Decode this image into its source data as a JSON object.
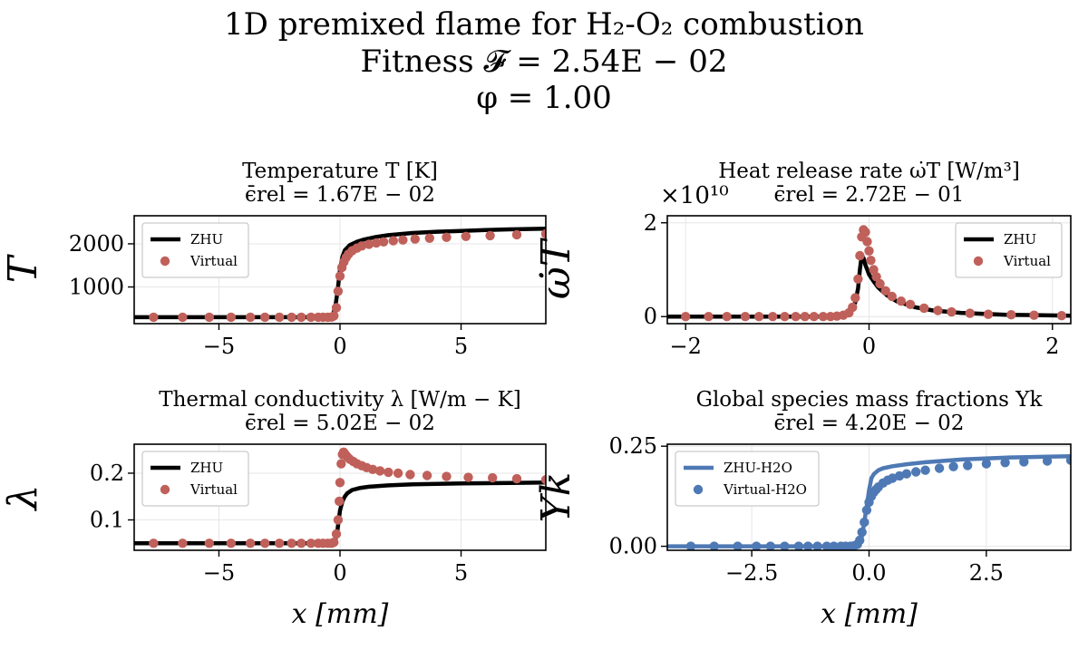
{
  "figure": {
    "title_lines": [
      "1D premixed flame for H₂-O₂ combustion",
      "Fitness 𝓕 = 2.54E − 02",
      "φ = 1.00"
    ],
    "colors": {
      "reference": "#000000",
      "virtual": "#c0605a",
      "species": "#4e79b4",
      "grid": "#e6e6e6"
    }
  },
  "chart_data": [
    {
      "type": "line",
      "panel": "temperature",
      "title": "Temperature T [K]",
      "subtitle": "ϵ̄rel = 1.67E − 02",
      "xlabel": "",
      "ylabel": "T",
      "xlim": [
        -8.5,
        8.5
      ],
      "ylim": [
        150,
        2650
      ],
      "xticks": [
        -5,
        0,
        5
      ],
      "xtick_labels": [
        "−5",
        "0",
        "5"
      ],
      "yticks": [
        1000,
        2000
      ],
      "ytick_labels": [
        "1000",
        "2000"
      ],
      "grid": true,
      "legend_position": "top-left",
      "series": [
        {
          "name": "ZHU",
          "style": "line",
          "color": "#000000",
          "x": [
            -8.5,
            -1.0,
            -0.5,
            -0.3,
            -0.2,
            -0.1,
            0.0,
            0.1,
            0.2,
            0.4,
            0.7,
            1.0,
            1.5,
            2.0,
            3.0,
            4.0,
            5.0,
            6.0,
            7.0,
            8.5
          ],
          "y": [
            300,
            300,
            305,
            360,
            520,
            900,
            1400,
            1700,
            1850,
            1970,
            2050,
            2100,
            2160,
            2200,
            2250,
            2280,
            2300,
            2320,
            2335,
            2350
          ]
        },
        {
          "name": "Virtual",
          "style": "scatter",
          "color": "#c0605a",
          "x": [
            -7.7,
            -6.5,
            -5.4,
            -4.5,
            -3.7,
            -3.1,
            -2.5,
            -2.0,
            -1.6,
            -1.2,
            -0.9,
            -0.7,
            -0.5,
            -0.35,
            -0.25,
            -0.15,
            -0.08,
            0.0,
            0.08,
            0.16,
            0.25,
            0.35,
            0.5,
            0.7,
            0.9,
            1.2,
            1.5,
            1.8,
            2.2,
            2.6,
            3.1,
            3.7,
            4.4,
            5.2,
            6.2,
            7.3,
            8.5
          ],
          "y": [
            300,
            300,
            300,
            300,
            300,
            300,
            300,
            300,
            300,
            300,
            300,
            300,
            300,
            302,
            330,
            520,
            900,
            1250,
            1450,
            1580,
            1680,
            1760,
            1840,
            1900,
            1950,
            1990,
            2020,
            2045,
            2070,
            2090,
            2110,
            2130,
            2150,
            2170,
            2190,
            2210,
            2230
          ]
        }
      ]
    },
    {
      "type": "line",
      "panel": "heat-release",
      "title": "Heat release rate ω̇T [W/m³]",
      "subtitle": "ϵ̄rel = 2.72E − 01",
      "xlabel": "",
      "ylabel": "ω̇T",
      "y_scale_label": "×10¹⁰",
      "xlim": [
        -2.2,
        2.2
      ],
      "ylim": [
        -0.15,
        2.15
      ],
      "xticks": [
        -2,
        0,
        2
      ],
      "xtick_labels": [
        "−2",
        "0",
        "2"
      ],
      "yticks": [
        0,
        2
      ],
      "ytick_labels": [
        "0",
        "2"
      ],
      "grid": true,
      "legend_position": "top-right",
      "series": [
        {
          "name": "ZHU",
          "style": "line",
          "color": "#000000",
          "x": [
            -2.2,
            -0.5,
            -0.3,
            -0.2,
            -0.15,
            -0.12,
            -0.1,
            -0.08,
            -0.06,
            -0.04,
            -0.02,
            0.0,
            0.05,
            0.1,
            0.2,
            0.3,
            0.5,
            0.7,
            1.0,
            1.5,
            2.2
          ],
          "y": [
            0,
            0,
            0.02,
            0.1,
            0.3,
            0.6,
            1.0,
            1.3,
            1.25,
            1.1,
            1.0,
            0.9,
            0.75,
            0.62,
            0.45,
            0.33,
            0.2,
            0.13,
            0.08,
            0.04,
            0.02
          ]
        },
        {
          "name": "Virtual",
          "style": "scatter",
          "color": "#c0605a",
          "x": [
            -2.0,
            -1.75,
            -1.55,
            -1.35,
            -1.2,
            -1.05,
            -0.92,
            -0.8,
            -0.7,
            -0.6,
            -0.5,
            -0.42,
            -0.35,
            -0.28,
            -0.22,
            -0.18,
            -0.15,
            -0.12,
            -0.1,
            -0.08,
            -0.06,
            -0.04,
            -0.02,
            0.0,
            0.02,
            0.05,
            0.08,
            0.12,
            0.18,
            0.25,
            0.35,
            0.45,
            0.6,
            0.75,
            0.9,
            1.1,
            1.3,
            1.55,
            1.8,
            2.1
          ],
          "y": [
            0,
            0,
            0,
            0,
            0,
            0,
            0,
            0,
            0,
            0,
            0,
            0,
            0.01,
            0.03,
            0.08,
            0.2,
            0.4,
            0.8,
            1.3,
            1.7,
            1.85,
            1.8,
            1.6,
            1.4,
            1.2,
            1.0,
            0.85,
            0.7,
            0.55,
            0.43,
            0.33,
            0.26,
            0.18,
            0.13,
            0.1,
            0.07,
            0.05,
            0.04,
            0.03,
            0.02
          ]
        }
      ]
    },
    {
      "type": "line",
      "panel": "conductivity",
      "title": "Thermal conductivity λ [W/m − K]",
      "subtitle": "ϵ̄rel = 5.02E − 02",
      "xlabel": "x [mm]",
      "ylabel": "λ",
      "xlim": [
        -8.5,
        8.5
      ],
      "ylim": [
        0.035,
        0.262
      ],
      "xticks": [
        -5,
        0,
        5
      ],
      "xtick_labels": [
        "−5",
        "0",
        "5"
      ],
      "yticks": [
        0.1,
        0.2
      ],
      "ytick_labels": [
        "0.1",
        "0.2"
      ],
      "grid": true,
      "legend_position": "top-left",
      "series": [
        {
          "name": "ZHU",
          "style": "line",
          "color": "#000000",
          "x": [
            -8.5,
            -1.0,
            -0.3,
            -0.2,
            -0.1,
            0.0,
            0.1,
            0.2,
            0.3,
            0.5,
            0.8,
            1.2,
            2.0,
            3.0,
            5.0,
            7.0,
            8.5
          ],
          "y": [
            0.05,
            0.05,
            0.051,
            0.055,
            0.08,
            0.12,
            0.14,
            0.15,
            0.157,
            0.164,
            0.168,
            0.171,
            0.174,
            0.176,
            0.178,
            0.179,
            0.18
          ]
        },
        {
          "name": "Virtual",
          "style": "scatter",
          "color": "#c0605a",
          "x": [
            -7.7,
            -6.5,
            -5.4,
            -4.5,
            -3.7,
            -3.1,
            -2.5,
            -2.0,
            -1.6,
            -1.2,
            -0.9,
            -0.7,
            -0.5,
            -0.35,
            -0.25,
            -0.15,
            -0.08,
            -0.03,
            0.0,
            0.05,
            0.1,
            0.15,
            0.22,
            0.3,
            0.4,
            0.55,
            0.7,
            0.9,
            1.1,
            1.35,
            1.65,
            2.0,
            2.4,
            2.9,
            3.6,
            4.4,
            5.3,
            6.3,
            7.3,
            8.5
          ],
          "y": [
            0.05,
            0.05,
            0.05,
            0.05,
            0.05,
            0.05,
            0.05,
            0.05,
            0.05,
            0.05,
            0.05,
            0.05,
            0.05,
            0.05,
            0.052,
            0.07,
            0.1,
            0.14,
            0.18,
            0.22,
            0.24,
            0.245,
            0.24,
            0.235,
            0.23,
            0.225,
            0.22,
            0.216,
            0.212,
            0.208,
            0.205,
            0.202,
            0.2,
            0.197,
            0.195,
            0.193,
            0.191,
            0.19,
            0.188,
            0.186
          ]
        }
      ]
    },
    {
      "type": "line",
      "panel": "species",
      "title": "Global species mass fractions Yk",
      "subtitle": "ϵ̄rel = 4.20E − 02",
      "xlabel": "x [mm]",
      "ylabel": "Yk",
      "xlim": [
        -4.3,
        4.3
      ],
      "ylim": [
        -0.01,
        0.255
      ],
      "xticks": [
        -2.5,
        0,
        2.5
      ],
      "xtick_labels": [
        "−2.5",
        "0.0",
        "2.5"
      ],
      "yticks": [
        0,
        0.25
      ],
      "ytick_labels": [
        "0.00",
        "0.25"
      ],
      "grid": true,
      "legend_position": "top-left",
      "series": [
        {
          "name": "ZHU-H2O",
          "style": "line",
          "color": "#4e79b4",
          "x": [
            -4.3,
            -0.5,
            -0.3,
            -0.2,
            -0.15,
            -0.1,
            -0.05,
            0.0,
            0.05,
            0.1,
            0.2,
            0.3,
            0.5,
            0.8,
            1.2,
            2.0,
            3.0,
            4.3
          ],
          "y": [
            0,
            0,
            0.002,
            0.01,
            0.025,
            0.06,
            0.1,
            0.14,
            0.17,
            0.18,
            0.19,
            0.195,
            0.2,
            0.205,
            0.21,
            0.217,
            0.222,
            0.225
          ]
        },
        {
          "name": "Virtual-H2O",
          "style": "scatter",
          "color": "#4e79b4",
          "x": [
            -3.8,
            -3.3,
            -2.8,
            -2.4,
            -2.1,
            -1.8,
            -1.5,
            -1.3,
            -1.1,
            -0.9,
            -0.75,
            -0.6,
            -0.5,
            -0.4,
            -0.32,
            -0.25,
            -0.2,
            -0.15,
            -0.1,
            -0.05,
            0.0,
            0.05,
            0.1,
            0.15,
            0.2,
            0.3,
            0.4,
            0.5,
            0.65,
            0.8,
            1.0,
            1.2,
            1.5,
            1.8,
            2.1,
            2.5,
            2.9,
            3.3,
            3.8,
            4.3
          ],
          "y": [
            0,
            0,
            0,
            0,
            0,
            0,
            0,
            0,
            0,
            0,
            0,
            0,
            0,
            0,
            0.001,
            0.005,
            0.015,
            0.035,
            0.06,
            0.09,
            0.11,
            0.125,
            0.135,
            0.142,
            0.148,
            0.158,
            0.165,
            0.17,
            0.176,
            0.181,
            0.186,
            0.19,
            0.195,
            0.199,
            0.202,
            0.206,
            0.209,
            0.211,
            0.213,
            0.215
          ]
        }
      ]
    }
  ]
}
